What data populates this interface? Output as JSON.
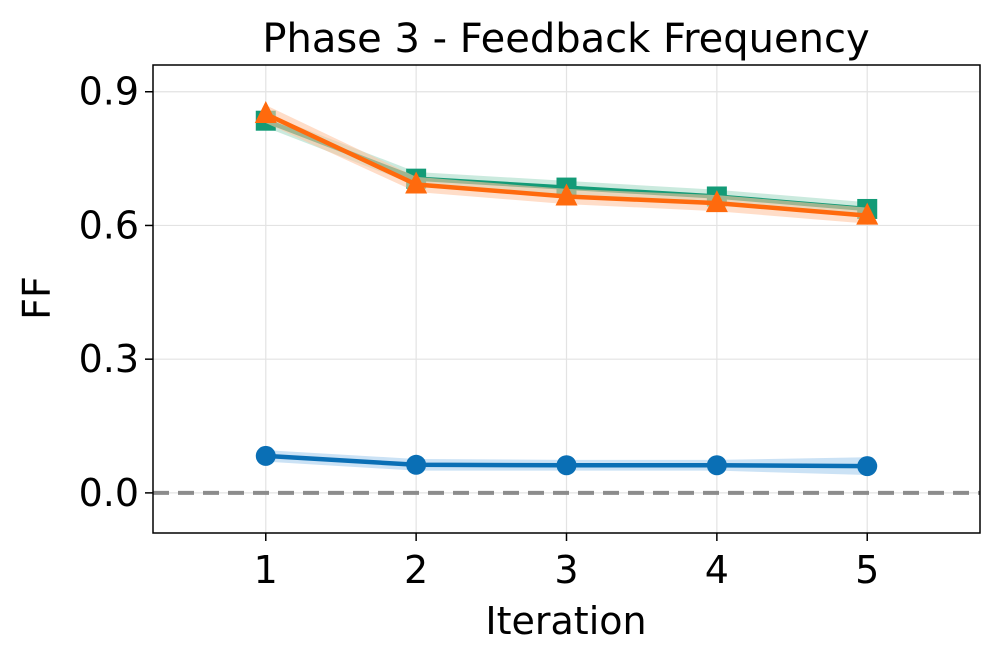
{
  "chart_data": {
    "type": "line",
    "title": "Phase 3 - Feedback Frequency",
    "xlabel": "Iteration",
    "ylabel": "FF",
    "x": [
      1,
      2,
      3,
      4,
      5
    ],
    "x_ticks": [
      "1",
      "2",
      "3",
      "4",
      "5"
    ],
    "xlim": [
      0.25,
      5.75
    ],
    "y_ticks": [
      "0.0",
      "0.3",
      "0.6",
      "0.9"
    ],
    "y_tick_values": [
      0.0,
      0.3,
      0.6,
      0.9
    ],
    "ylim": [
      -0.09,
      0.96
    ],
    "grid": true,
    "reference_line": {
      "y": 0.0,
      "style": "dashed",
      "color": "#8c8c8c"
    },
    "series": [
      {
        "name": "blue-circle",
        "marker": "circle",
        "color": "#0a6fb5",
        "band_color": "#a9cfee",
        "values": [
          0.083,
          0.063,
          0.062,
          0.062,
          0.06
        ],
        "lower": [
          0.07,
          0.05,
          0.05,
          0.05,
          0.04
        ],
        "upper": [
          0.096,
          0.076,
          0.074,
          0.074,
          0.08
        ]
      },
      {
        "name": "green-square",
        "marker": "square",
        "color": "#139b77",
        "band_color": "#a8dcc8",
        "values": [
          0.835,
          0.705,
          0.685,
          0.665,
          0.637
        ],
        "lower": [
          0.82,
          0.69,
          0.67,
          0.65,
          0.622
        ],
        "upper": [
          0.85,
          0.72,
          0.7,
          0.68,
          0.652
        ]
      },
      {
        "name": "orange-triangle",
        "marker": "triangle",
        "color": "#ff6a0d",
        "band_color": "#ffc6a3",
        "values": [
          0.85,
          0.692,
          0.665,
          0.65,
          0.622
        ],
        "lower": [
          0.83,
          0.675,
          0.648,
          0.632,
          0.604
        ],
        "upper": [
          0.87,
          0.709,
          0.682,
          0.668,
          0.64
        ]
      }
    ]
  }
}
